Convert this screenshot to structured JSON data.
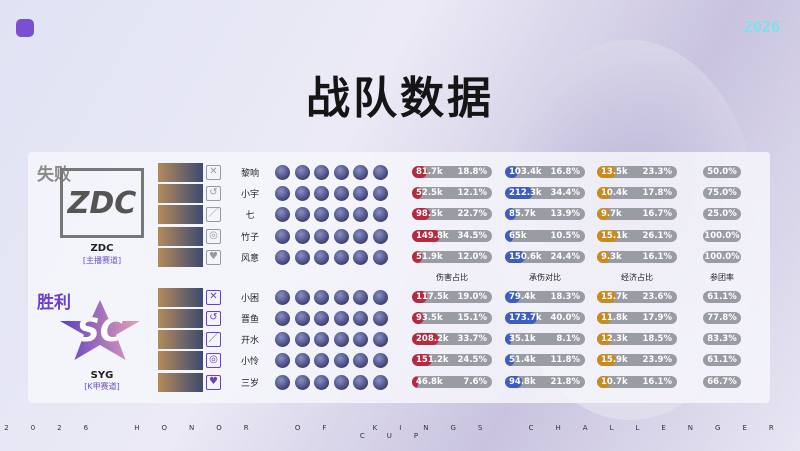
{
  "year": "2026",
  "title": "战队数据",
  "footer": "2026 HONOR OF KINGS CHALLENGER CUP",
  "headers": [
    "伤害占比",
    "承伤对比",
    "经济占比",
    "参团率"
  ],
  "colors": {
    "damage": "#b52a3f",
    "tanked": "#3d5dc0",
    "economy": "#c98a1f",
    "win": "#6a3fd0",
    "loss": "#8a8a8a"
  },
  "teams": [
    {
      "result": "失败",
      "name": "ZDC",
      "league": "[主播赛道]",
      "logo_text": "ZDC",
      "players": [
        {
          "name": "黎响",
          "role": "jungle-icon",
          "damage": "81.7k",
          "damage_pct": "18.8%",
          "tanked": "103.4k",
          "tanked_pct": "16.8%",
          "economy": "13.5k",
          "economy_pct": "23.3%",
          "participation": "50.0%"
        },
        {
          "name": "小宇",
          "role": "clash-lane-icon",
          "damage": "52.5k",
          "damage_pct": "12.1%",
          "tanked": "212.3k",
          "tanked_pct": "34.4%",
          "economy": "10.4k",
          "economy_pct": "17.8%",
          "participation": "75.0%"
        },
        {
          "name": "七",
          "role": "mid-lane-icon",
          "damage": "98.5k",
          "damage_pct": "22.7%",
          "tanked": "85.7k",
          "tanked_pct": "13.9%",
          "economy": "9.7k",
          "economy_pct": "16.7%",
          "participation": "25.0%"
        },
        {
          "name": "竹子",
          "role": "farm-lane-icon",
          "damage": "149.8k",
          "damage_pct": "34.5%",
          "tanked": "65k",
          "tanked_pct": "10.5%",
          "economy": "15.1k",
          "economy_pct": "26.1%",
          "participation": "100.0%"
        },
        {
          "name": "风意",
          "role": "support-icon",
          "damage": "51.9k",
          "damage_pct": "12.0%",
          "tanked": "150.6k",
          "tanked_pct": "24.4%",
          "economy": "9.3k",
          "economy_pct": "16.1%",
          "participation": "100.0%"
        }
      ]
    },
    {
      "result": "胜利",
      "name": "SYG",
      "league": "[K甲赛道]",
      "logo_text": "SC",
      "players": [
        {
          "name": "小困",
          "role": "jungle-icon",
          "damage": "117.5k",
          "damage_pct": "19.0%",
          "tanked": "79.4k",
          "tanked_pct": "18.3%",
          "economy": "15.7k",
          "economy_pct": "23.6%",
          "participation": "61.1%"
        },
        {
          "name": "晋鱼",
          "role": "clash-lane-icon",
          "damage": "93.5k",
          "damage_pct": "15.1%",
          "tanked": "173.7k",
          "tanked_pct": "40.0%",
          "economy": "11.8k",
          "economy_pct": "17.9%",
          "participation": "77.8%"
        },
        {
          "name": "开水",
          "role": "mid-lane-icon",
          "damage": "208.2k",
          "damage_pct": "33.7%",
          "tanked": "35.1k",
          "tanked_pct": "8.1%",
          "economy": "12.3k",
          "economy_pct": "18.5%",
          "participation": "83.3%"
        },
        {
          "name": "小怜",
          "role": "farm-lane-icon",
          "damage": "151.2k",
          "damage_pct": "24.5%",
          "tanked": "51.4k",
          "tanked_pct": "11.8%",
          "economy": "15.9k",
          "economy_pct": "23.9%",
          "participation": "61.1%"
        },
        {
          "name": "三岁",
          "role": "support-icon",
          "damage": "46.8k",
          "damage_pct": "7.6%",
          "tanked": "94.8k",
          "tanked_pct": "21.8%",
          "economy": "10.7k",
          "economy_pct": "16.1%",
          "participation": "66.7%"
        }
      ]
    }
  ]
}
